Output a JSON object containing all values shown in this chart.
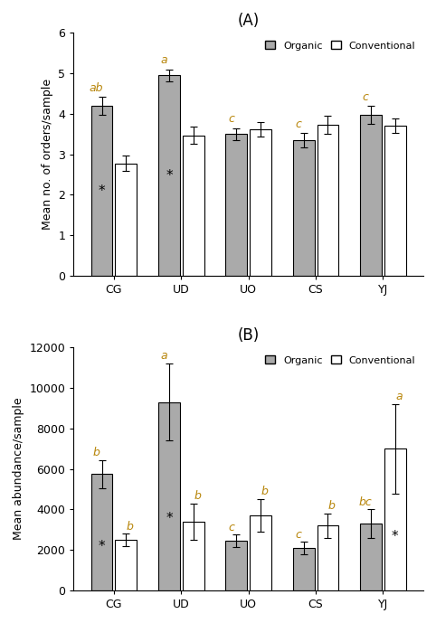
{
  "categories": [
    "CG",
    "UD",
    "UO",
    "CS",
    "YJ"
  ],
  "A_organic_means": [
    4.2,
    4.95,
    3.5,
    3.35,
    3.98
  ],
  "A_organic_errors": [
    0.22,
    0.15,
    0.15,
    0.18,
    0.22
  ],
  "A_conv_means": [
    2.78,
    3.47,
    3.62,
    3.73,
    3.7
  ],
  "A_conv_errors": [
    0.18,
    0.22,
    0.17,
    0.22,
    0.18
  ],
  "A_organic_labels": [
    "ab",
    "a",
    "c",
    "c",
    "c"
  ],
  "A_organic_star": [
    true,
    true,
    false,
    false,
    false
  ],
  "B_organic_means": [
    5750,
    9300,
    2450,
    2100,
    3300
  ],
  "B_organic_errors": [
    700,
    1900,
    300,
    300,
    700
  ],
  "B_conv_means": [
    2500,
    3400,
    3700,
    3200,
    7000
  ],
  "B_conv_errors": [
    300,
    900,
    800,
    600,
    2200
  ],
  "B_organic_labels": [
    "b",
    "a",
    "c",
    "c",
    "bc"
  ],
  "B_organic_star": [
    true,
    true,
    false,
    false,
    false
  ],
  "B_conv_labels": [
    "b",
    "b",
    "b",
    "b",
    "a"
  ],
  "B_conv_star": [
    false,
    false,
    false,
    false,
    true
  ],
  "organic_color": "#aaaaaa",
  "conv_color": "#ffffff",
  "bar_edge_color": "#000000",
  "label_color_orange": "#b8860b",
  "label_color_black": "#000000",
  "A_ylabel": "Mean no. of orders/sample",
  "B_ylabel": "Mean abundance/sample",
  "A_ylim": [
    0,
    6
  ],
  "B_ylim": [
    0,
    12000
  ],
  "A_yticks": [
    0,
    1,
    2,
    3,
    4,
    5,
    6
  ],
  "B_yticks": [
    0,
    2000,
    4000,
    6000,
    8000,
    10000,
    12000
  ],
  "title_A": "(A)",
  "title_B": "(B)"
}
